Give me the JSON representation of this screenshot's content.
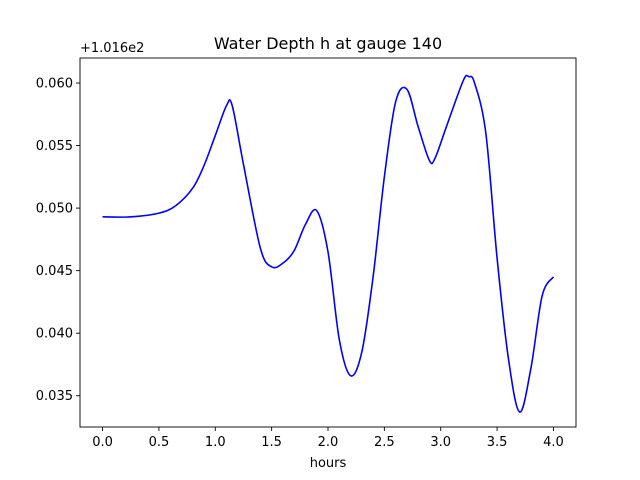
{
  "chart_data": {
    "type": "line",
    "title": "Water Depth h at gauge 140",
    "xlabel": "hours",
    "ylabel": "",
    "y_offset_label": "+1.016e2",
    "xlim": [
      -0.2,
      4.2
    ],
    "ylim": [
      0.0325,
      0.062
    ],
    "xticks": [
      0.0,
      0.5,
      1.0,
      1.5,
      2.0,
      2.5,
      3.0,
      3.5,
      4.0
    ],
    "xtick_labels": [
      "0.0",
      "0.5",
      "1.0",
      "1.5",
      "2.0",
      "2.5",
      "3.0",
      "3.5",
      "4.0"
    ],
    "yticks": [
      0.035,
      0.04,
      0.045,
      0.05,
      0.055,
      0.06
    ],
    "ytick_labels": [
      "0.035",
      "0.040",
      "0.045",
      "0.050",
      "0.055",
      "0.060"
    ],
    "grid": false,
    "series": [
      {
        "color": "#0000ff",
        "x": [
          0.0,
          0.25,
          0.5,
          0.65,
          0.8,
          0.9,
          1.0,
          1.1,
          1.15,
          1.25,
          1.4,
          1.5,
          1.6,
          1.7,
          1.8,
          1.9,
          2.0,
          2.1,
          2.2,
          2.3,
          2.4,
          2.5,
          2.6,
          2.7,
          2.8,
          2.9,
          2.95,
          3.05,
          3.2,
          3.25,
          3.3,
          3.4,
          3.5,
          3.6,
          3.7,
          3.8,
          3.9,
          4.0
        ],
        "y": [
          0.0493,
          0.0493,
          0.0496,
          0.0502,
          0.0516,
          0.0534,
          0.0558,
          0.0582,
          0.0582,
          0.0535,
          0.0468,
          0.0453,
          0.0456,
          0.0466,
          0.0487,
          0.0498,
          0.0465,
          0.0395,
          0.0366,
          0.0385,
          0.0445,
          0.0525,
          0.0585,
          0.0595,
          0.0565,
          0.0538,
          0.054,
          0.0565,
          0.0602,
          0.0605,
          0.06,
          0.056,
          0.046,
          0.038,
          0.0337,
          0.0372,
          0.043,
          0.0445
        ]
      }
    ]
  }
}
